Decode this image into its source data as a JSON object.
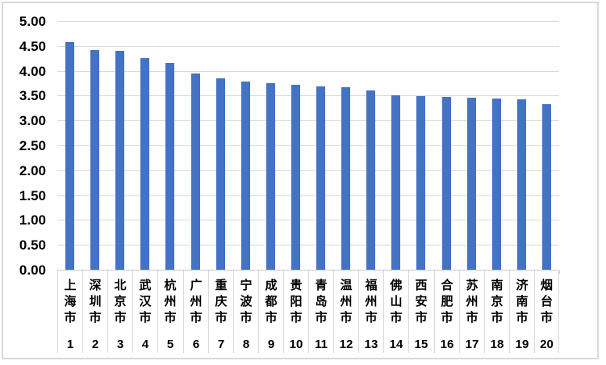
{
  "chart_data": {
    "type": "bar",
    "title": "",
    "xlabel": "",
    "ylabel": "",
    "categories": [
      "上海市",
      "深圳市",
      "北京市",
      "武汉市",
      "杭州市",
      "广州市",
      "重庆市",
      "宁波市",
      "成都市",
      "贵阳市",
      "青岛市",
      "温州市",
      "福州市",
      "佛山市",
      "西安市",
      "合肥市",
      "苏州市",
      "南京市",
      "济南市",
      "烟台市"
    ],
    "ranks": [
      "1",
      "2",
      "3",
      "4",
      "5",
      "6",
      "7",
      "8",
      "9",
      "10",
      "11",
      "12",
      "13",
      "14",
      "15",
      "16",
      "17",
      "18",
      "19",
      "20"
    ],
    "values": [
      4.58,
      4.41,
      4.4,
      4.25,
      4.15,
      3.95,
      3.85,
      3.79,
      3.75,
      3.72,
      3.69,
      3.67,
      3.6,
      3.5,
      3.49,
      3.47,
      3.45,
      3.44,
      3.42,
      3.33
    ],
    "ylim": [
      0,
      5
    ],
    "ytick_step": 0.5,
    "ytick_labels": [
      "0.00",
      "0.50",
      "1.00",
      "1.50",
      "2.00",
      "2.50",
      "3.00",
      "3.50",
      "4.00",
      "4.50",
      "5.00"
    ],
    "grid": "horizontal",
    "legend": "none",
    "colors": {
      "bar": "#4472C4",
      "gridline": "#D9D9D9",
      "frame_border": "#D9D9D9",
      "axis_line": "#C9C9C9",
      "text": "#000000",
      "background": "#FFFFFF"
    }
  }
}
